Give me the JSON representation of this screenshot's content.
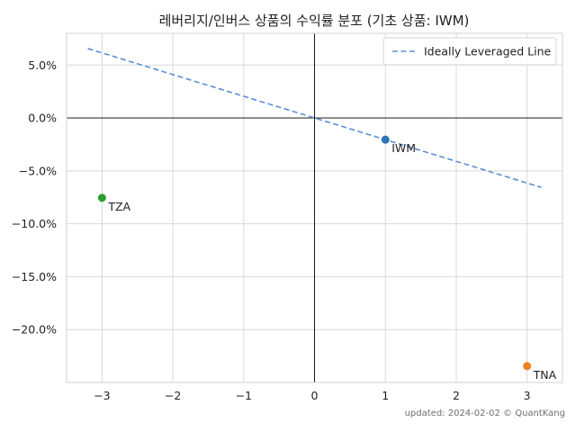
{
  "chart_data": {
    "type": "scatter",
    "title": "레버리지/인버스 상품의 수익률 분포 (기초 상품: IWM)",
    "xlabel": "",
    "ylabel": "",
    "xlim": [
      -3.5,
      3.5
    ],
    "ylim": [
      -25.0,
      8.0
    ],
    "x_ticks": [
      -3,
      -2,
      -1,
      0,
      1,
      2,
      3
    ],
    "x_tick_labels": [
      "−3",
      "−2",
      "−1",
      "0",
      "1",
      "2",
      "3"
    ],
    "y_ticks": [
      5,
      0,
      -5,
      -10,
      -15,
      -20
    ],
    "y_tick_labels": [
      "5.0%",
      "0.0%",
      "−5.0%",
      "−10.0%",
      "−15.0%",
      "−20.0%"
    ],
    "grid": true,
    "legend_position": "top-right",
    "points": [
      {
        "label": "IWM",
        "x": 1,
        "y": -2.05,
        "color": "#2f74b9"
      },
      {
        "label": "TNA",
        "x": 3,
        "y": -23.45,
        "color": "#f07f1d"
      },
      {
        "label": "TZA",
        "x": -3,
        "y": -7.55,
        "color": "#2ca02c"
      }
    ],
    "series": [
      {
        "name": "Ideally Leveraged Line",
        "style": "dashed",
        "color": "#5b8fd6",
        "x": [
          -3.2,
          3.2
        ],
        "y": [
          6.56,
          -6.56
        ]
      }
    ]
  },
  "footer": {
    "text": "updated: 2024-02-02 © QuantKang"
  }
}
